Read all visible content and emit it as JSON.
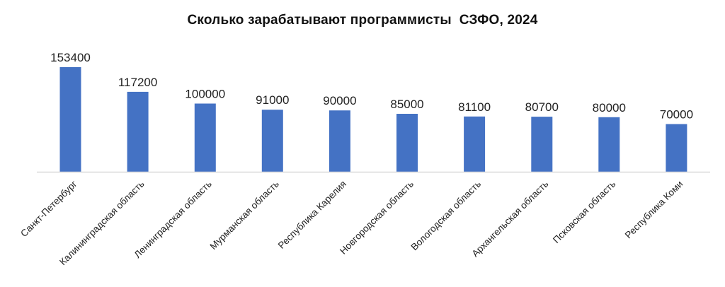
{
  "chart_data": {
    "type": "bar",
    "title": "Сколько зарабатывают программисты  СЗФО, 2024",
    "categories": [
      "Санкт-Петербург",
      "Калининградская область",
      "Ленинградская область",
      "Мурманская область",
      "Республика Карелия",
      "Новгородская область",
      "Вологодская область",
      "Архангельская область",
      "Псковская область",
      "Республика Коми"
    ],
    "values": [
      153400,
      117200,
      100000,
      91000,
      90000,
      85000,
      81100,
      80700,
      80000,
      70000
    ],
    "value_labels": [
      "153400",
      "117200",
      "100000",
      "91000",
      "90000",
      "85000",
      "81100",
      "80700",
      "80000",
      "70000"
    ],
    "xlabel": "",
    "ylabel": "",
    "ylim": [
      0,
      153400
    ],
    "grid": false,
    "legend": "none",
    "bar_color": "#4472C4",
    "axis_color": "#D9D9D9"
  }
}
